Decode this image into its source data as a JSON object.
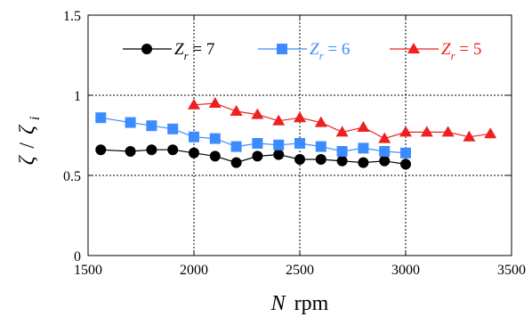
{
  "chart_data": {
    "type": "line",
    "xlabel": {
      "var": "N",
      "unit": "rpm"
    },
    "ylabel": {
      "num": "ζ",
      "den": "ζ",
      "den_sub": "i"
    },
    "xlim": [
      1500,
      3500
    ],
    "ylim": [
      0,
      1.5
    ],
    "xticks": [
      1500,
      2000,
      2500,
      3000,
      3500
    ],
    "yticks": [
      0,
      0.5,
      1,
      1.5
    ],
    "ytick_labels": [
      "0",
      "0.5",
      "1",
      "1.5"
    ],
    "grid": "dotted",
    "legend_position": "top",
    "series": [
      {
        "name": "Z_r = 7",
        "label": {
          "var": "Z",
          "sub": "r",
          "rest": " = 7"
        },
        "color": "#000000",
        "marker": "circle",
        "x": [
          1560,
          1700,
          1800,
          1900,
          2000,
          2100,
          2200,
          2300,
          2400,
          2500,
          2600,
          2700,
          2800,
          2900,
          3000
        ],
        "y": [
          0.66,
          0.65,
          0.66,
          0.66,
          0.64,
          0.62,
          0.58,
          0.62,
          0.63,
          0.6,
          0.6,
          0.59,
          0.58,
          0.59,
          0.57
        ]
      },
      {
        "name": "Z_r = 6",
        "label": {
          "var": "Z",
          "sub": "r",
          "rest": " = 6"
        },
        "color": "#3c8cff",
        "marker": "square",
        "x": [
          1560,
          1700,
          1800,
          1900,
          2000,
          2100,
          2200,
          2300,
          2400,
          2500,
          2600,
          2700,
          2800,
          2900,
          3000
        ],
        "y": [
          0.86,
          0.83,
          0.81,
          0.79,
          0.74,
          0.73,
          0.68,
          0.7,
          0.69,
          0.7,
          0.68,
          0.65,
          0.67,
          0.65,
          0.64
        ]
      },
      {
        "name": "Z_r = 5",
        "label": {
          "var": "Z",
          "sub": "r",
          "rest": " = 5"
        },
        "color": "#ee2020",
        "marker": "triangle",
        "x": [
          2000,
          2100,
          2200,
          2300,
          2400,
          2500,
          2600,
          2700,
          2800,
          2900,
          3000,
          3100,
          3200,
          3300,
          3400
        ],
        "y": [
          0.94,
          0.95,
          0.9,
          0.88,
          0.84,
          0.86,
          0.83,
          0.77,
          0.8,
          0.73,
          0.77,
          0.77,
          0.77,
          0.74,
          0.76
        ]
      }
    ]
  }
}
